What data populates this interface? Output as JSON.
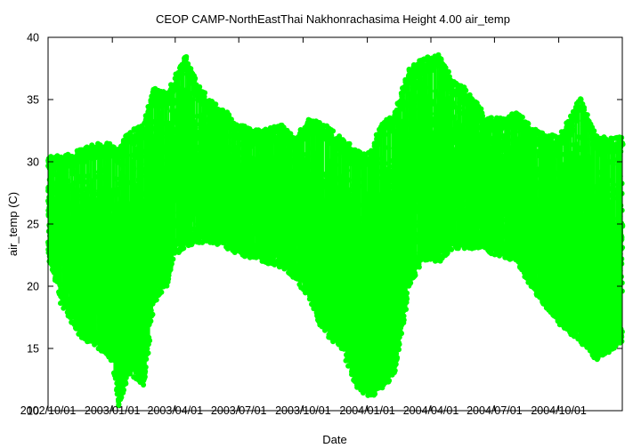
{
  "chart_data": {
    "type": "scatter",
    "title": "CEOP CAMP-NorthEastThai Nakhonrachasima Height 4.00 air_temp",
    "xlabel": "Date",
    "ylabel": "air_temp (C)",
    "xlim": [
      "2002-10-01",
      "2004-12-31"
    ],
    "ylim": [
      10,
      40
    ],
    "x_ticks": [
      "2002/10/01",
      "2003/01/01",
      "2003/04/01",
      "2003/07/01",
      "2003/10/01",
      "2004/01/01",
      "2004/04/01",
      "2004/07/01",
      "2004/10/01"
    ],
    "y_ticks": [
      10,
      15,
      20,
      25,
      30,
      35,
      40
    ],
    "grid": false,
    "legend": "none",
    "marker_color": "#00ff00",
    "envelope": [
      {
        "date": "2002-10-01",
        "min": 22.5,
        "max": 30.5
      },
      {
        "date": "2002-10-20",
        "min": 18.5,
        "max": 30.5
      },
      {
        "date": "2002-11-15",
        "min": 16.0,
        "max": 31.0
      },
      {
        "date": "2002-12-10",
        "min": 15.0,
        "max": 31.5
      },
      {
        "date": "2003-01-01",
        "min": 14.0,
        "max": 31.5
      },
      {
        "date": "2003-01-10",
        "min": 10.2,
        "max": 31.0
      },
      {
        "date": "2003-01-25",
        "min": 13.0,
        "max": 32.5
      },
      {
        "date": "2003-02-15",
        "min": 12.0,
        "max": 33.0
      },
      {
        "date": "2003-03-01",
        "min": 18.5,
        "max": 36.0
      },
      {
        "date": "2003-03-20",
        "min": 20.0,
        "max": 35.5
      },
      {
        "date": "2003-04-01",
        "min": 22.5,
        "max": 37.0
      },
      {
        "date": "2003-04-15",
        "min": 23.0,
        "max": 38.7
      },
      {
        "date": "2003-05-01",
        "min": 23.5,
        "max": 36.5
      },
      {
        "date": "2003-05-20",
        "min": 23.5,
        "max": 35.0
      },
      {
        "date": "2003-06-15",
        "min": 23.0,
        "max": 34.0
      },
      {
        "date": "2003-07-01",
        "min": 22.5,
        "max": 33.0
      },
      {
        "date": "2003-08-01",
        "min": 22.0,
        "max": 32.5
      },
      {
        "date": "2003-09-01",
        "min": 21.5,
        "max": 33.0
      },
      {
        "date": "2003-09-20",
        "min": 20.5,
        "max": 32.0
      },
      {
        "date": "2003-10-10",
        "min": 19.0,
        "max": 33.5
      },
      {
        "date": "2003-11-01",
        "min": 16.0,
        "max": 33.0
      },
      {
        "date": "2003-11-25",
        "min": 15.0,
        "max": 32.0
      },
      {
        "date": "2003-12-15",
        "min": 12.0,
        "max": 31.0
      },
      {
        "date": "2004-01-01",
        "min": 11.0,
        "max": 30.5
      },
      {
        "date": "2004-01-20",
        "min": 11.5,
        "max": 33.0
      },
      {
        "date": "2004-02-10",
        "min": 13.0,
        "max": 34.0
      },
      {
        "date": "2004-03-01",
        "min": 20.0,
        "max": 37.5
      },
      {
        "date": "2004-03-20",
        "min": 22.0,
        "max": 38.3
      },
      {
        "date": "2004-04-15",
        "min": 22.0,
        "max": 38.7
      },
      {
        "date": "2004-05-01",
        "min": 23.0,
        "max": 36.5
      },
      {
        "date": "2004-05-20",
        "min": 23.0,
        "max": 36.0
      },
      {
        "date": "2004-06-15",
        "min": 23.0,
        "max": 34.0
      },
      {
        "date": "2004-07-01",
        "min": 22.5,
        "max": 33.5
      },
      {
        "date": "2004-08-01",
        "min": 22.0,
        "max": 34.0
      },
      {
        "date": "2004-09-01",
        "min": 19.0,
        "max": 32.5
      },
      {
        "date": "2004-10-01",
        "min": 17.0,
        "max": 32.0
      },
      {
        "date": "2004-11-01",
        "min": 15.5,
        "max": 35.2
      },
      {
        "date": "2004-11-25",
        "min": 14.0,
        "max": 32.0
      },
      {
        "date": "2004-12-31",
        "min": 15.5,
        "max": 32.0
      }
    ]
  }
}
